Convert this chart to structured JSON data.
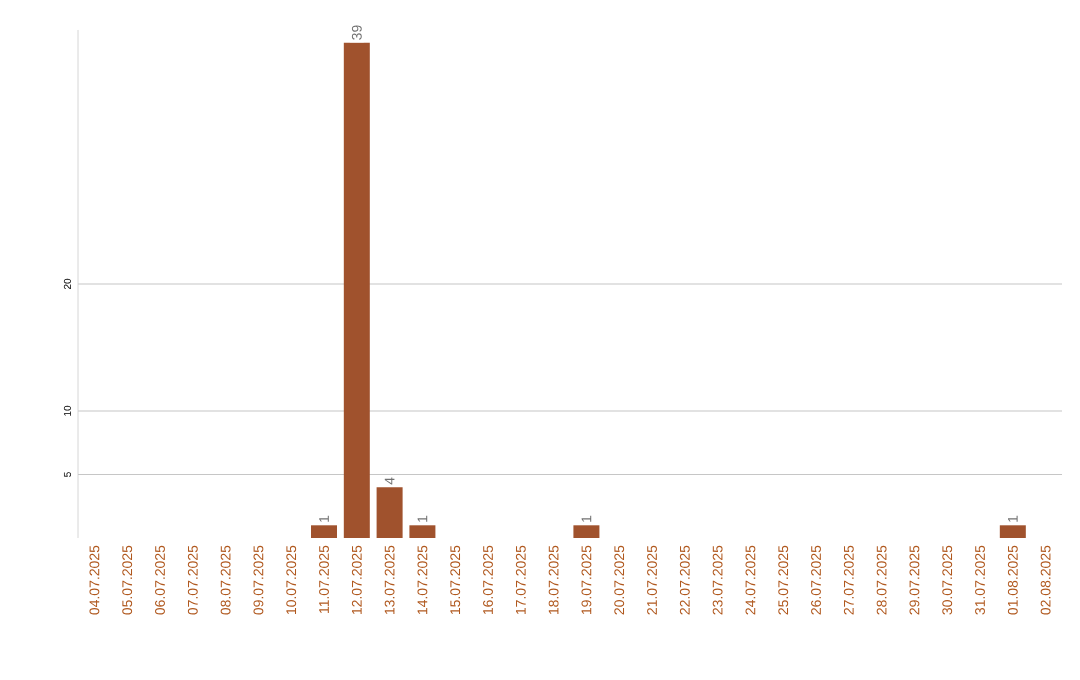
{
  "chart_data": {
    "type": "bar",
    "categories": [
      "04.07.2025",
      "05.07.2025",
      "06.07.2025",
      "07.07.2025",
      "08.07.2025",
      "09.07.2025",
      "10.07.2025",
      "11.07.2025",
      "12.07.2025",
      "13.07.2025",
      "14.07.2025",
      "15.07.2025",
      "16.07.2025",
      "17.07.2025",
      "18.07.2025",
      "19.07.2025",
      "20.07.2025",
      "21.07.2025",
      "22.07.2025",
      "23.07.2025",
      "24.07.2025",
      "25.07.2025",
      "26.07.2025",
      "27.07.2025",
      "28.07.2025",
      "29.07.2025",
      "30.07.2025",
      "31.07.2025",
      "01.08.2025",
      "02.08.2025"
    ],
    "values": [
      0,
      0,
      0,
      0,
      0,
      0,
      0,
      1,
      39,
      4,
      1,
      0,
      0,
      0,
      0,
      1,
      0,
      0,
      0,
      0,
      0,
      0,
      0,
      0,
      0,
      0,
      0,
      0,
      1,
      0
    ],
    "value_labels": [
      null,
      null,
      null,
      null,
      null,
      null,
      null,
      "1",
      "39",
      "4",
      "1",
      null,
      null,
      null,
      null,
      "1",
      null,
      null,
      null,
      null,
      null,
      null,
      null,
      null,
      null,
      null,
      null,
      null,
      "1",
      null
    ],
    "color": "#a0522d",
    "ylim": [
      0,
      40
    ],
    "yticks": [
      5,
      10,
      20
    ],
    "grid": "y"
  }
}
